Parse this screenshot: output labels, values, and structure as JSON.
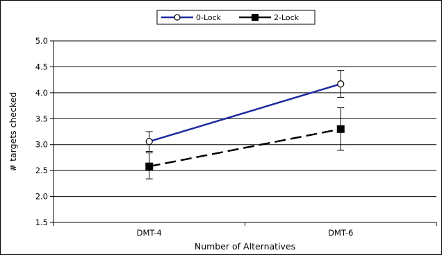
{
  "chart_data": {
    "type": "line",
    "title": "",
    "xlabel": "Number of Alternatives",
    "ylabel": "# targets checked",
    "categories": [
      "DMT-4",
      "DMT-6"
    ],
    "ylim": [
      1.5,
      5.0
    ],
    "yticks": [
      "1.5",
      "2.0",
      "2.5",
      "3.0",
      "3.5",
      "4.0",
      "4.5",
      "5.0"
    ],
    "grid": true,
    "legend_position": "top",
    "series": [
      {
        "name": "0-Lock",
        "values": [
          3.06,
          4.17
        ],
        "error_low": [
          2.87,
          3.91
        ],
        "error_high": [
          3.25,
          4.43
        ],
        "color": "#1f2aa0",
        "line_style": "solid",
        "marker": "open-circle"
      },
      {
        "name": "2-Lock",
        "values": [
          2.58,
          3.3
        ],
        "error_low": [
          2.34,
          2.89
        ],
        "error_high": [
          2.84,
          3.71
        ],
        "color": "#000000",
        "line_style": "dashed",
        "marker": "filled-square"
      }
    ]
  }
}
